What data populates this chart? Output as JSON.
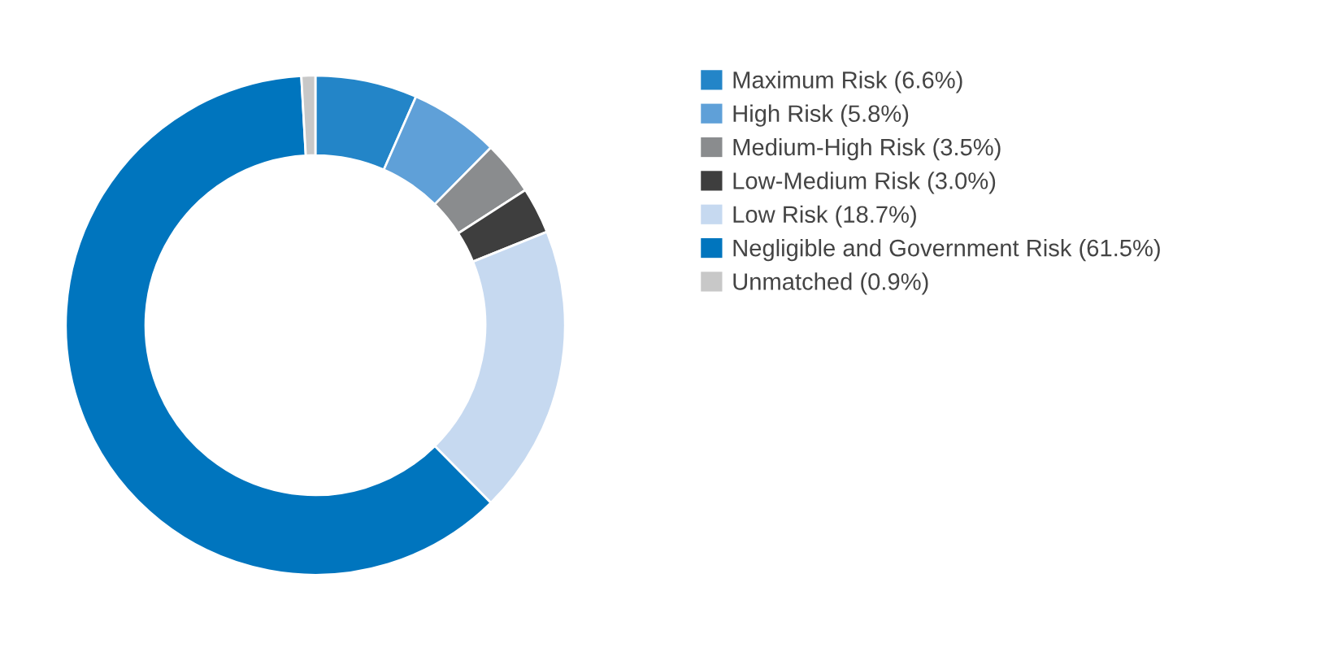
{
  "chart_data": {
    "type": "donut",
    "categories": [
      "Maximum Risk (6.6%)",
      "High Risk (5.8%)",
      "Medium-High Risk (3.5%)",
      "Low-Medium Risk (3.0%)",
      "Low Risk (18.7%)",
      "Negligible and Government Risk (61.5%)",
      "Unmatched (0.9%)"
    ],
    "values": [
      6.6,
      5.8,
      3.5,
      3.0,
      18.7,
      61.5,
      0.9
    ],
    "colors": [
      "#2385c8",
      "#5fa0d8",
      "#8a8c8e",
      "#3e3e3e",
      "#c6d9f0",
      "#0075be",
      "#c8c8c8"
    ],
    "legend": "right"
  }
}
